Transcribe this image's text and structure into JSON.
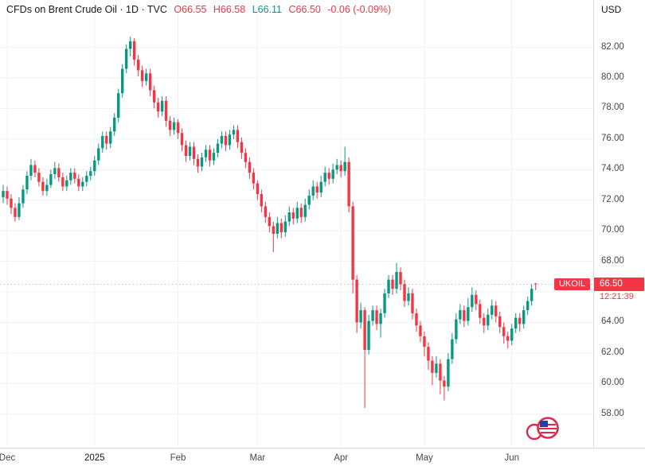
{
  "colors": {
    "up": "#089981",
    "down": "#f23645",
    "grid": "#eef1f6",
    "axis_border": "#d7dade",
    "text": "#131722",
    "muted": "#43474e",
    "price_line": "#b7bac1"
  },
  "header": {
    "title": "CFDs on Brent Crude Oil · 1D · TVC",
    "open": "O66.55",
    "high": "H66.58",
    "low": "L66.11",
    "close": "C66.50",
    "change": "-0.06 (-0.09%)"
  },
  "price_label": {
    "symbol": "UKOIL",
    "price": "66.50",
    "countdown": "12:21:39"
  },
  "chart_data": {
    "type": "candlestick",
    "title": "CFDs on Brent Crude Oil",
    "interval": "1D",
    "exchange": "TVC",
    "currency": "USD",
    "last_bar": {
      "open": 66.55,
      "high": 66.58,
      "low": 66.11,
      "close": 66.5,
      "change": -0.06,
      "change_pct": -0.09
    },
    "price_axis": {
      "min": 55.8,
      "max": 85.1,
      "grid_ticks": [
        58,
        60,
        62,
        64,
        66,
        68,
        70,
        72,
        74,
        76,
        78,
        80,
        82
      ],
      "label_ticks": [
        58,
        60,
        62,
        64,
        68,
        70,
        72,
        74,
        76,
        78,
        80,
        82
      ]
    },
    "time_axis": {
      "months": [
        {
          "label": "Dec",
          "bar": 1,
          "year": false
        },
        {
          "label": "2025",
          "bar": 23,
          "year": true
        },
        {
          "label": "Feb",
          "bar": 44,
          "year": false
        },
        {
          "label": "Mar",
          "bar": 64,
          "year": false
        },
        {
          "label": "Apr",
          "bar": 85,
          "year": false
        },
        {
          "label": "May",
          "bar": 106,
          "year": false
        },
        {
          "label": "Jun",
          "bar": 128,
          "year": false
        }
      ]
    },
    "candles": [
      [
        72.2,
        73.0,
        71.8,
        72.6
      ],
      [
        72.6,
        72.9,
        71.7,
        72.1
      ],
      [
        72.1,
        72.4,
        71.1,
        71.5
      ],
      [
        71.5,
        71.8,
        70.6,
        70.9
      ],
      [
        70.9,
        72.2,
        70.7,
        71.8
      ],
      [
        71.8,
        73.0,
        71.5,
        72.7
      ],
      [
        72.7,
        73.9,
        72.4,
        73.6
      ],
      [
        73.6,
        74.7,
        73.3,
        74.3
      ],
      [
        74.3,
        74.6,
        73.5,
        73.8
      ],
      [
        73.8,
        74.1,
        72.9,
        73.2
      ],
      [
        73.2,
        73.5,
        72.3,
        72.6
      ],
      [
        72.6,
        73.4,
        72.3,
        73.0
      ],
      [
        73.0,
        74.0,
        72.8,
        73.7
      ],
      [
        73.7,
        74.5,
        73.4,
        74.1
      ],
      [
        74.1,
        74.4,
        73.2,
        73.5
      ],
      [
        73.5,
        73.8,
        72.6,
        72.9
      ],
      [
        72.9,
        73.6,
        72.6,
        73.3
      ],
      [
        73.3,
        74.1,
        73.0,
        73.8
      ],
      [
        73.8,
        74.1,
        73.1,
        73.4
      ],
      [
        73.4,
        73.7,
        72.6,
        72.9
      ],
      [
        72.9,
        73.5,
        72.6,
        73.2
      ],
      [
        73.2,
        73.9,
        72.9,
        73.6
      ],
      [
        73.6,
        74.2,
        73.3,
        73.9
      ],
      [
        73.9,
        74.9,
        73.6,
        74.6
      ],
      [
        74.6,
        75.7,
        74.3,
        75.4
      ],
      [
        75.4,
        76.5,
        75.1,
        76.2
      ],
      [
        76.2,
        76.5,
        75.3,
        75.7
      ],
      [
        75.7,
        76.8,
        75.4,
        76.5
      ],
      [
        76.5,
        77.7,
        76.2,
        77.4
      ],
      [
        77.4,
        79.3,
        77.1,
        79.0
      ],
      [
        79.0,
        80.9,
        78.7,
        80.6
      ],
      [
        80.6,
        82.2,
        80.3,
        81.9
      ],
      [
        81.9,
        82.7,
        81.4,
        82.4
      ],
      [
        82.4,
        82.6,
        80.8,
        81.2
      ],
      [
        81.2,
        81.5,
        80.1,
        80.5
      ],
      [
        80.5,
        80.8,
        79.4,
        79.8
      ],
      [
        79.8,
        80.6,
        79.5,
        80.3
      ],
      [
        80.3,
        80.6,
        78.8,
        79.2
      ],
      [
        79.2,
        79.5,
        78.0,
        78.4
      ],
      [
        78.4,
        78.7,
        77.4,
        77.8
      ],
      [
        77.8,
        78.8,
        77.5,
        78.5
      ],
      [
        78.5,
        78.8,
        76.8,
        77.2
      ],
      [
        77.2,
        77.5,
        76.2,
        76.6
      ],
      [
        76.6,
        77.4,
        76.3,
        77.1
      ],
      [
        77.1,
        77.3,
        76.0,
        76.4
      ],
      [
        76.4,
        76.7,
        75.2,
        75.6
      ],
      [
        75.6,
        75.9,
        74.5,
        74.9
      ],
      [
        74.9,
        75.8,
        74.6,
        75.5
      ],
      [
        75.5,
        75.8,
        74.3,
        74.7
      ],
      [
        74.7,
        75.0,
        73.8,
        74.2
      ],
      [
        74.2,
        75.1,
        73.9,
        74.8
      ],
      [
        74.8,
        75.6,
        74.5,
        75.3
      ],
      [
        75.3,
        75.6,
        74.2,
        74.6
      ],
      [
        74.6,
        75.4,
        74.3,
        75.1
      ],
      [
        75.1,
        76.0,
        74.8,
        75.7
      ],
      [
        75.7,
        76.5,
        75.4,
        76.2
      ],
      [
        76.2,
        76.5,
        75.2,
        75.6
      ],
      [
        75.6,
        76.6,
        75.3,
        76.3
      ],
      [
        76.3,
        76.9,
        76.0,
        76.6
      ],
      [
        76.6,
        76.9,
        75.4,
        75.8
      ],
      [
        75.8,
        76.1,
        74.7,
        75.1
      ],
      [
        75.1,
        75.4,
        74.1,
        74.5
      ],
      [
        74.5,
        74.8,
        73.4,
        73.8
      ],
      [
        73.8,
        74.1,
        72.7,
        73.1
      ],
      [
        73.1,
        73.3,
        72.0,
        72.4
      ],
      [
        72.4,
        72.7,
        71.2,
        71.6
      ],
      [
        71.6,
        71.9,
        70.5,
        70.9
      ],
      [
        70.9,
        71.2,
        69.9,
        70.3
      ],
      [
        70.3,
        70.6,
        68.6,
        69.8
      ],
      [
        69.8,
        70.9,
        69.5,
        70.5
      ],
      [
        70.5,
        70.8,
        69.5,
        69.9
      ],
      [
        69.9,
        71.0,
        69.6,
        70.6
      ],
      [
        70.6,
        71.6,
        70.3,
        71.2
      ],
      [
        71.2,
        71.5,
        70.4,
        70.8
      ],
      [
        70.8,
        71.9,
        70.5,
        71.5
      ],
      [
        71.5,
        71.8,
        70.5,
        70.9
      ],
      [
        70.9,
        72.1,
        70.6,
        71.7
      ],
      [
        71.7,
        72.7,
        71.4,
        72.3
      ],
      [
        72.3,
        73.3,
        72.0,
        72.9
      ],
      [
        72.9,
        73.2,
        72.1,
        72.5
      ],
      [
        72.5,
        73.6,
        72.2,
        73.2
      ],
      [
        73.2,
        74.2,
        72.9,
        73.8
      ],
      [
        73.8,
        74.1,
        73.0,
        73.4
      ],
      [
        73.4,
        74.4,
        73.1,
        74.0
      ],
      [
        74.0,
        74.7,
        73.7,
        74.3
      ],
      [
        74.3,
        74.6,
        73.5,
        73.9
      ],
      [
        73.9,
        75.5,
        73.6,
        74.5
      ],
      [
        74.5,
        74.8,
        71.2,
        71.6
      ],
      [
        71.6,
        71.9,
        65.9,
        66.8
      ],
      [
        66.8,
        67.1,
        63.3,
        64.0
      ],
      [
        64.0,
        65.3,
        63.6,
        64.8
      ],
      [
        64.8,
        65.0,
        58.4,
        62.2
      ],
      [
        62.2,
        64.5,
        61.9,
        64.1
      ],
      [
        64.1,
        65.1,
        63.8,
        64.8
      ],
      [
        64.8,
        65.1,
        63.5,
        63.9
      ],
      [
        63.9,
        64.9,
        63.0,
        64.6
      ],
      [
        64.6,
        66.2,
        64.3,
        65.9
      ],
      [
        65.9,
        67.1,
        65.6,
        66.8
      ],
      [
        66.8,
        67.1,
        65.8,
        66.2
      ],
      [
        66.2,
        67.9,
        65.9,
        67.3
      ],
      [
        67.3,
        67.6,
        66.1,
        66.5
      ],
      [
        66.5,
        66.8,
        65.0,
        65.4
      ],
      [
        65.4,
        66.3,
        65.1,
        65.9
      ],
      [
        65.9,
        66.2,
        64.2,
        64.6
      ],
      [
        64.6,
        64.9,
        63.4,
        63.8
      ],
      [
        63.8,
        64.1,
        62.7,
        63.1
      ],
      [
        63.1,
        63.4,
        61.8,
        62.4
      ],
      [
        62.4,
        62.7,
        60.9,
        61.5
      ],
      [
        61.5,
        61.8,
        59.9,
        60.7
      ],
      [
        60.7,
        61.8,
        60.4,
        61.3
      ],
      [
        61.3,
        61.6,
        59.3,
        60.2
      ],
      [
        60.2,
        60.5,
        58.9,
        59.8
      ],
      [
        59.8,
        62.0,
        59.5,
        61.6
      ],
      [
        61.6,
        63.3,
        61.3,
        62.9
      ],
      [
        62.9,
        64.6,
        62.6,
        64.2
      ],
      [
        64.2,
        65.2,
        63.9,
        64.8
      ],
      [
        64.8,
        65.1,
        63.7,
        64.1
      ],
      [
        64.1,
        65.6,
        63.8,
        65.0
      ],
      [
        65.0,
        66.3,
        64.7,
        65.8
      ],
      [
        65.8,
        66.1,
        64.8,
        65.2
      ],
      [
        65.2,
        65.5,
        63.9,
        64.3
      ],
      [
        64.3,
        64.6,
        63.3,
        63.8
      ],
      [
        63.8,
        64.9,
        63.5,
        64.5
      ],
      [
        64.5,
        65.5,
        64.2,
        65.1
      ],
      [
        65.1,
        65.4,
        64.0,
        64.4
      ],
      [
        64.4,
        64.7,
        63.3,
        63.7
      ],
      [
        63.7,
        64.0,
        62.6,
        63.1
      ],
      [
        63.1,
        63.4,
        62.3,
        62.8
      ],
      [
        62.8,
        63.9,
        62.5,
        63.6
      ],
      [
        63.6,
        64.6,
        63.3,
        64.3
      ],
      [
        64.3,
        64.6,
        63.4,
        63.9
      ],
      [
        63.9,
        65.1,
        63.6,
        64.8
      ],
      [
        64.8,
        65.7,
        64.5,
        65.4
      ],
      [
        65.4,
        66.5,
        65.1,
        66.2
      ],
      [
        66.55,
        66.58,
        66.11,
        66.5
      ]
    ]
  }
}
